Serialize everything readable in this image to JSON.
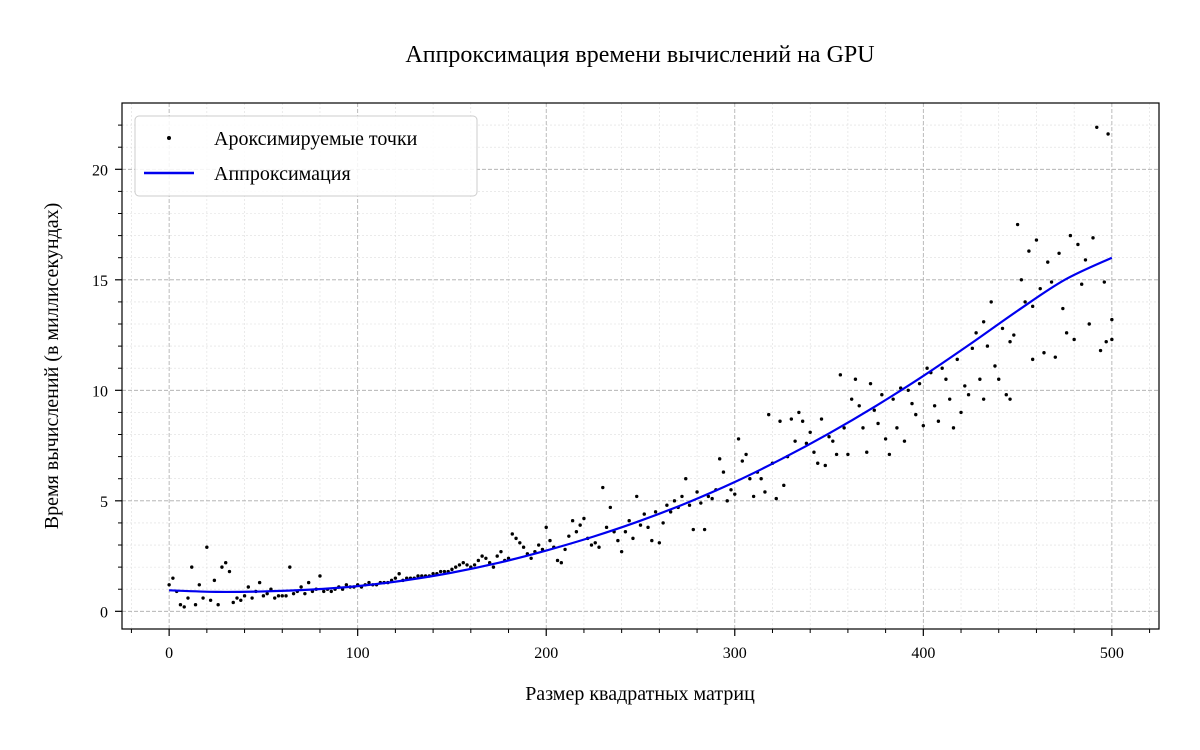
{
  "chart_data": {
    "type": "scatter",
    "title": "Аппроксимация времени вычислений на GPU",
    "xlabel": "Размер квадратных матриц",
    "ylabel": "Время вычислений (в миллисекундах)",
    "xlim": [
      -25,
      525
    ],
    "ylim": [
      -0.8,
      23
    ],
    "x_ticks": [
      0,
      100,
      200,
      300,
      400,
      500
    ],
    "y_ticks": [
      0,
      5,
      10,
      15,
      20
    ],
    "grid": true,
    "legend_position": "top-left",
    "colors": {
      "scatter": "#000000",
      "fit": "#0000ee"
    },
    "series": [
      {
        "name": "Ароксимируемые точки",
        "kind": "scatter",
        "points": [
          [
            0,
            1.2
          ],
          [
            2,
            1.5
          ],
          [
            4,
            0.9
          ],
          [
            6,
            0.3
          ],
          [
            8,
            0.2
          ],
          [
            10,
            0.6
          ],
          [
            12,
            2.0
          ],
          [
            14,
            0.3
          ],
          [
            16,
            1.2
          ],
          [
            18,
            0.6
          ],
          [
            20,
            2.9
          ],
          [
            22,
            0.5
          ],
          [
            24,
            1.4
          ],
          [
            26,
            0.3
          ],
          [
            28,
            2.0
          ],
          [
            30,
            2.2
          ],
          [
            32,
            1.8
          ],
          [
            34,
            0.4
          ],
          [
            36,
            0.6
          ],
          [
            38,
            0.5
          ],
          [
            40,
            0.7
          ],
          [
            42,
            1.1
          ],
          [
            44,
            0.6
          ],
          [
            46,
            0.9
          ],
          [
            48,
            1.3
          ],
          [
            50,
            0.7
          ],
          [
            52,
            0.8
          ],
          [
            54,
            1.0
          ],
          [
            56,
            0.6
          ],
          [
            58,
            0.7
          ],
          [
            60,
            0.7
          ],
          [
            62,
            0.7
          ],
          [
            64,
            2.0
          ],
          [
            66,
            0.8
          ],
          [
            68,
            0.9
          ],
          [
            70,
            1.1
          ],
          [
            72,
            0.8
          ],
          [
            74,
            1.3
          ],
          [
            76,
            0.9
          ],
          [
            78,
            1.0
          ],
          [
            80,
            1.6
          ],
          [
            82,
            0.9
          ],
          [
            84,
            1.0
          ],
          [
            86,
            0.9
          ],
          [
            88,
            1.0
          ],
          [
            90,
            1.1
          ],
          [
            92,
            1.0
          ],
          [
            94,
            1.2
          ],
          [
            96,
            1.1
          ],
          [
            98,
            1.1
          ],
          [
            100,
            1.2
          ],
          [
            102,
            1.1
          ],
          [
            104,
            1.2
          ],
          [
            106,
            1.3
          ],
          [
            108,
            1.2
          ],
          [
            110,
            1.2
          ],
          [
            112,
            1.3
          ],
          [
            114,
            1.3
          ],
          [
            116,
            1.3
          ],
          [
            118,
            1.4
          ],
          [
            120,
            1.5
          ],
          [
            122,
            1.7
          ],
          [
            124,
            1.4
          ],
          [
            126,
            1.5
          ],
          [
            128,
            1.5
          ],
          [
            130,
            1.5
          ],
          [
            132,
            1.6
          ],
          [
            134,
            1.6
          ],
          [
            136,
            1.6
          ],
          [
            138,
            1.6
          ],
          [
            140,
            1.7
          ],
          [
            142,
            1.7
          ],
          [
            144,
            1.8
          ],
          [
            146,
            1.8
          ],
          [
            148,
            1.8
          ],
          [
            150,
            1.9
          ],
          [
            152,
            2.0
          ],
          [
            154,
            2.1
          ],
          [
            156,
            2.2
          ],
          [
            158,
            2.1
          ],
          [
            160,
            2.0
          ],
          [
            162,
            2.1
          ],
          [
            164,
            2.3
          ],
          [
            166,
            2.5
          ],
          [
            168,
            2.4
          ],
          [
            170,
            2.2
          ],
          [
            172,
            2.0
          ],
          [
            174,
            2.5
          ],
          [
            176,
            2.7
          ],
          [
            178,
            2.3
          ],
          [
            180,
            2.4
          ],
          [
            182,
            3.5
          ],
          [
            184,
            3.3
          ],
          [
            186,
            3.1
          ],
          [
            188,
            2.9
          ],
          [
            190,
            2.6
          ],
          [
            192,
            2.4
          ],
          [
            194,
            2.7
          ],
          [
            196,
            3.0
          ],
          [
            198,
            2.8
          ],
          [
            200,
            3.8
          ],
          [
            202,
            3.2
          ],
          [
            204,
            2.9
          ],
          [
            206,
            2.3
          ],
          [
            208,
            2.2
          ],
          [
            210,
            2.8
          ],
          [
            212,
            3.4
          ],
          [
            214,
            4.1
          ],
          [
            216,
            3.6
          ],
          [
            218,
            3.9
          ],
          [
            220,
            4.2
          ],
          [
            222,
            3.3
          ],
          [
            224,
            3.0
          ],
          [
            226,
            3.1
          ],
          [
            228,
            2.9
          ],
          [
            230,
            5.6
          ],
          [
            232,
            3.8
          ],
          [
            234,
            4.7
          ],
          [
            236,
            3.6
          ],
          [
            238,
            3.2
          ],
          [
            240,
            2.7
          ],
          [
            242,
            3.6
          ],
          [
            244,
            4.1
          ],
          [
            246,
            3.3
          ],
          [
            248,
            5.2
          ],
          [
            250,
            3.9
          ],
          [
            252,
            4.4
          ],
          [
            254,
            3.8
          ],
          [
            256,
            3.2
          ],
          [
            258,
            4.5
          ],
          [
            260,
            3.1
          ],
          [
            262,
            4.0
          ],
          [
            264,
            4.8
          ],
          [
            266,
            4.5
          ],
          [
            268,
            5.0
          ],
          [
            270,
            4.7
          ],
          [
            272,
            5.2
          ],
          [
            274,
            6.0
          ],
          [
            276,
            4.8
          ],
          [
            278,
            3.7
          ],
          [
            280,
            5.4
          ],
          [
            282,
            4.9
          ],
          [
            284,
            3.7
          ],
          [
            286,
            5.2
          ],
          [
            288,
            5.1
          ],
          [
            290,
            5.5
          ],
          [
            292,
            6.9
          ],
          [
            294,
            6.3
          ],
          [
            296,
            5.0
          ],
          [
            298,
            5.5
          ],
          [
            300,
            5.3
          ],
          [
            302,
            7.8
          ],
          [
            304,
            6.8
          ],
          [
            306,
            7.1
          ],
          [
            308,
            6.0
          ],
          [
            310,
            5.2
          ],
          [
            312,
            6.3
          ],
          [
            314,
            6.0
          ],
          [
            316,
            5.4
          ],
          [
            318,
            8.9
          ],
          [
            320,
            6.7
          ],
          [
            322,
            5.1
          ],
          [
            324,
            8.6
          ],
          [
            326,
            5.7
          ],
          [
            328,
            7.0
          ],
          [
            330,
            8.7
          ],
          [
            332,
            7.7
          ],
          [
            334,
            9.0
          ],
          [
            336,
            8.6
          ],
          [
            338,
            7.6
          ],
          [
            340,
            8.1
          ],
          [
            342,
            7.2
          ],
          [
            344,
            6.7
          ],
          [
            346,
            8.7
          ],
          [
            348,
            6.6
          ],
          [
            350,
            7.9
          ],
          [
            352,
            7.7
          ],
          [
            354,
            7.1
          ],
          [
            356,
            10.7
          ],
          [
            358,
            8.3
          ],
          [
            360,
            7.1
          ],
          [
            362,
            9.6
          ],
          [
            364,
            10.5
          ],
          [
            366,
            9.3
          ],
          [
            368,
            8.3
          ],
          [
            370,
            7.2
          ],
          [
            372,
            10.3
          ],
          [
            374,
            9.1
          ],
          [
            376,
            8.5
          ],
          [
            378,
            9.8
          ],
          [
            380,
            7.8
          ],
          [
            382,
            7.1
          ],
          [
            384,
            9.6
          ],
          [
            386,
            8.3
          ],
          [
            388,
            10.1
          ],
          [
            390,
            7.7
          ],
          [
            392,
            10.0
          ],
          [
            394,
            9.4
          ],
          [
            396,
            8.9
          ],
          [
            398,
            10.3
          ],
          [
            400,
            8.4
          ],
          [
            402,
            11.0
          ],
          [
            404,
            10.8
          ],
          [
            406,
            9.3
          ],
          [
            408,
            8.6
          ],
          [
            410,
            11.0
          ],
          [
            412,
            10.5
          ],
          [
            414,
            9.6
          ],
          [
            416,
            8.3
          ],
          [
            418,
            11.4
          ],
          [
            420,
            9.0
          ],
          [
            422,
            10.2
          ],
          [
            424,
            9.8
          ],
          [
            426,
            11.9
          ],
          [
            428,
            12.6
          ],
          [
            430,
            10.5
          ],
          [
            432,
            13.1
          ],
          [
            434,
            12.0
          ],
          [
            436,
            14.0
          ],
          [
            438,
            11.1
          ],
          [
            440,
            10.5
          ],
          [
            442,
            12.8
          ],
          [
            444,
            9.8
          ],
          [
            446,
            12.2
          ],
          [
            448,
            12.5
          ],
          [
            450,
            17.5
          ],
          [
            452,
            15.0
          ],
          [
            454,
            14.0
          ],
          [
            456,
            16.3
          ],
          [
            458,
            13.8
          ],
          [
            460,
            16.8
          ],
          [
            462,
            14.6
          ],
          [
            464,
            11.7
          ],
          [
            466,
            15.8
          ],
          [
            468,
            14.9
          ],
          [
            470,
            11.5
          ],
          [
            472,
            16.2
          ],
          [
            474,
            13.7
          ],
          [
            476,
            12.6
          ],
          [
            478,
            17.0
          ],
          [
            480,
            12.3
          ],
          [
            482,
            16.6
          ],
          [
            484,
            14.8
          ],
          [
            486,
            15.9
          ],
          [
            488,
            13.0
          ],
          [
            490,
            16.9
          ],
          [
            492,
            21.9
          ],
          [
            494,
            11.8
          ],
          [
            496,
            14.9
          ],
          [
            498,
            21.6
          ],
          [
            500,
            13.2
          ],
          [
            500,
            12.3
          ],
          [
            497,
            12.2
          ],
          [
            458,
            11.4
          ],
          [
            446,
            9.6
          ],
          [
            432,
            9.6
          ]
        ]
      },
      {
        "name": "Аппроксимация",
        "kind": "line",
        "points": [
          [
            0,
            0.95
          ],
          [
            25,
            0.88
          ],
          [
            50,
            0.9
          ],
          [
            75,
            0.98
          ],
          [
            100,
            1.14
          ],
          [
            125,
            1.4
          ],
          [
            150,
            1.75
          ],
          [
            175,
            2.2
          ],
          [
            200,
            2.75
          ],
          [
            225,
            3.38
          ],
          [
            250,
            4.1
          ],
          [
            275,
            4.92
          ],
          [
            300,
            5.85
          ],
          [
            325,
            6.9
          ],
          [
            350,
            8.05
          ],
          [
            375,
            9.3
          ],
          [
            400,
            10.65
          ],
          [
            425,
            12.1
          ],
          [
            450,
            13.6
          ],
          [
            475,
            15.0
          ],
          [
            500,
            16.0
          ]
        ]
      }
    ]
  }
}
